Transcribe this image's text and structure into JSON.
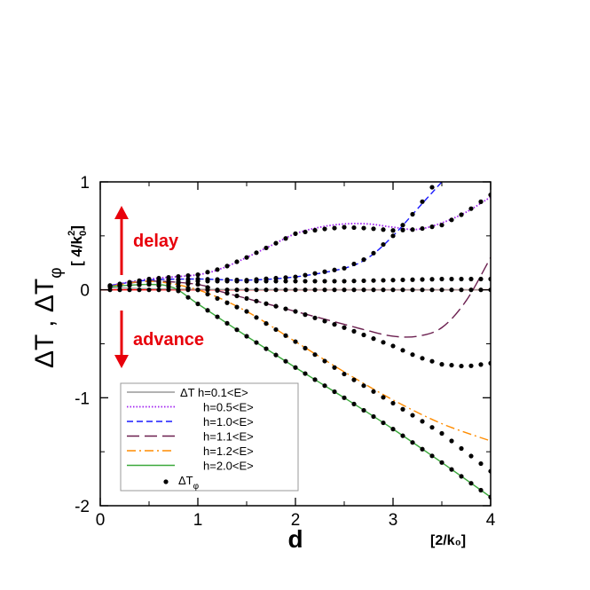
{
  "chart_data": {
    "type": "line",
    "xlim": [
      0,
      4
    ],
    "ylim": [
      -2,
      1
    ],
    "xticks": [
      "0",
      "1",
      "2",
      "3",
      "4"
    ],
    "yticks": [
      "-2",
      "-1",
      "0",
      "1"
    ],
    "xlabel": "d",
    "xunit": "[2/k₀]",
    "ylabel_main": "ΔT , ΔT",
    "ylabel_sub": "φ",
    "yunit": "[ 4/k",
    "yunit_sub": "0",
    "yunit_sup": "2",
    "yunit_end": "]",
    "grid": false,
    "legend_position": "bottom-left",
    "annotations": {
      "delay": "delay",
      "advance": "advance"
    },
    "zero_line_color": "#ff0000",
    "series": [
      {
        "name": "ΔT  h=0.1<E>",
        "style": "solid",
        "color": "#999999",
        "x": [
          0.1,
          0.5,
          1.0,
          1.5,
          2.0,
          2.5,
          3.0,
          3.5,
          4.0
        ],
        "y": [
          0.02,
          0.01,
          0.005,
          0.002,
          0.001,
          0.0,
          0.0,
          0.0,
          0.0
        ]
      },
      {
        "name": "h=0.5<E>",
        "style": "dotted",
        "color": "#a020f0",
        "x": [
          0.1,
          0.5,
          1.0,
          1.25,
          1.5,
          1.75,
          2.0,
          2.25,
          2.5,
          2.75,
          3.0,
          3.25,
          3.5,
          3.75,
          4.0
        ],
        "y": [
          0.04,
          0.1,
          0.14,
          0.2,
          0.3,
          0.41,
          0.52,
          0.58,
          0.61,
          0.61,
          0.58,
          0.56,
          0.62,
          0.72,
          0.86
        ]
      },
      {
        "name": "h=1.0<E>",
        "style": "dashed",
        "color": "#1a1aff",
        "x": [
          0.1,
          0.5,
          1.0,
          1.5,
          2.0,
          2.5,
          2.75,
          3.0,
          3.25,
          3.5
        ],
        "y": [
          0.04,
          0.09,
          0.1,
          0.09,
          0.12,
          0.2,
          0.3,
          0.5,
          0.75,
          1.0
        ]
      },
      {
        "name": "h=1.1<E>",
        "style": "longdash",
        "color": "#6b1f4f",
        "x": [
          0.1,
          0.5,
          1.0,
          1.25,
          1.5,
          2.0,
          2.5,
          2.75,
          3.0,
          3.25,
          3.5,
          3.75,
          4.0
        ],
        "y": [
          0.03,
          0.08,
          0.05,
          -0.02,
          -0.08,
          -0.2,
          -0.32,
          -0.38,
          -0.43,
          -0.43,
          -0.35,
          -0.1,
          0.3
        ]
      },
      {
        "name": "h=1.2<E>",
        "style": "dashdot",
        "color": "#ff8c00",
        "x": [
          0.1,
          0.5,
          1.0,
          1.5,
          2.0,
          2.5,
          3.0,
          3.5,
          4.0
        ],
        "y": [
          0.03,
          0.08,
          0.0,
          -0.2,
          -0.48,
          -0.76,
          -1.02,
          -1.24,
          -1.4
        ]
      },
      {
        "name": "h=2.0<E>",
        "style": "solid",
        "color": "#3aa83a",
        "x": [
          0.1,
          0.5,
          0.75,
          1.0,
          1.5,
          2.0,
          2.5,
          3.0,
          3.5,
          4.0
        ],
        "y": [
          0.03,
          0.05,
          0.02,
          -0.13,
          -0.43,
          -0.72,
          -1.0,
          -1.29,
          -1.6,
          -1.92
        ]
      },
      {
        "name": "ΔT",
        "name_sub": "φ",
        "style": "dots",
        "color": "#000000",
        "tracks": [
          {
            "x": [
              0.1,
              0.5,
              1.0,
              1.25,
              1.5,
              1.75,
              2.0,
              2.25,
              2.5,
              2.75,
              3.0,
              3.25,
              3.5,
              3.75,
              4.0
            ],
            "y": [
              0.04,
              0.1,
              0.14,
              0.2,
              0.3,
              0.41,
              0.52,
              0.56,
              0.58,
              0.57,
              0.55,
              0.56,
              0.6,
              0.72,
              0.88
            ]
          },
          {
            "x": [
              0.1,
              0.5,
              1.0,
              1.5,
              2.0,
              2.5,
              2.75,
              3.0,
              3.25,
              3.4
            ],
            "y": [
              0.04,
              0.09,
              0.1,
              0.09,
              0.12,
              0.2,
              0.3,
              0.5,
              0.75,
              0.95
            ]
          },
          {
            "x": [
              0.1,
              0.5,
              1.0,
              1.5,
              2.0,
              2.5,
              3.0,
              3.5,
              4.0
            ],
            "y": [
              0.03,
              0.06,
              0.08,
              0.08,
              0.08,
              0.08,
              0.09,
              0.1,
              0.1
            ]
          },
          {
            "x": [
              0.1,
              0.5,
              1.0,
              1.25,
              1.5,
              2.0,
              2.5,
              3.0,
              3.25,
              3.5,
              3.75,
              4.0
            ],
            "y": [
              0.03,
              0.08,
              0.05,
              -0.02,
              -0.08,
              -0.2,
              -0.35,
              -0.52,
              -0.62,
              -0.69,
              -0.71,
              -0.68
            ]
          },
          {
            "x": [
              0.1,
              0.5,
              1.0,
              1.5,
              2.0,
              2.5,
              3.0,
              3.5,
              4.0
            ],
            "y": [
              0.03,
              0.08,
              0.0,
              -0.2,
              -0.48,
              -0.78,
              -1.05,
              -1.33,
              -1.68
            ]
          },
          {
            "x": [
              0.1,
              0.5,
              0.75,
              1.0,
              1.5,
              2.0,
              2.5,
              3.0,
              3.5,
              4.0
            ],
            "y": [
              0.03,
              0.05,
              0.02,
              -0.13,
              -0.43,
              -0.72,
              -1.0,
              -1.29,
              -1.6,
              -1.92
            ]
          },
          {
            "x": [
              0.1,
              0.5,
              1.0,
              1.5,
              2.0,
              2.5,
              3.0,
              3.5,
              4.0
            ],
            "y": [
              0.0,
              0.0,
              0.0,
              0.0,
              0.0,
              0.0,
              0.0,
              0.0,
              0.0
            ]
          }
        ]
      }
    ]
  }
}
